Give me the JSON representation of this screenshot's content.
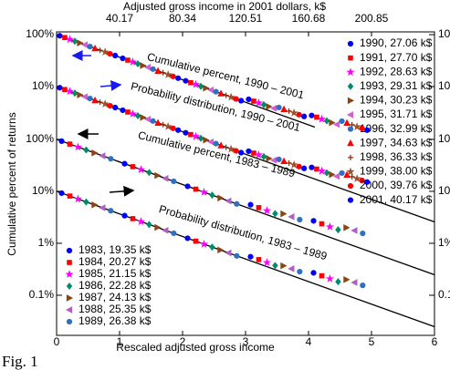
{
  "chart_data": {
    "type": "scatter",
    "log_y": true,
    "xlabel": "Rescaled adjusted gross income",
    "x2label": "Adjusted gross income in 2001 dollars, k$",
    "ylabel": "Cumulative percent of returns",
    "caption": "Fig. 1",
    "xlim": [
      0,
      6
    ],
    "xticks": [
      0,
      1,
      2,
      3,
      4,
      5,
      6
    ],
    "x2lim": [
      0,
      241.02
    ],
    "x2ticks": [
      40.17,
      80.34,
      120.51,
      160.68,
      200.85
    ],
    "ylim": [
      0.0169,
      11700
    ],
    "yticks": [
      {
        "value": 100,
        "label": "100%"
      },
      {
        "value": 10,
        "label": "10%"
      },
      {
        "value": 1,
        "label": "1%"
      },
      {
        "value": 0.1,
        "label": "0.1%"
      }
    ],
    "y2lim": [
      0.000162,
      113
    ],
    "y2ticks": [
      {
        "value": 100,
        "label": "100%"
      },
      {
        "value": 10,
        "label": "10%"
      }
    ],
    "y2color": "#1a1aee",
    "series": [
      {
        "name": "1990, 27.06 k$",
        "color": "#0000ff",
        "marker": "circle",
        "axis": "y2",
        "x": [
          0.05,
          1.05,
          2.05,
          3.05,
          4.05
        ],
        "values": [
          95.1,
          35.0,
          12.9,
          5.69,
          2.78
        ],
        "density": [
          9.51,
          3.5,
          1.29,
          0.569,
          0.278
        ]
      },
      {
        "name": "1991, 27.70 k$",
        "color": "#ff0000",
        "marker": "square",
        "axis": "y2",
        "x": [
          0.13,
          1.13,
          2.13,
          3.13,
          4.13
        ],
        "values": [
          87.8,
          32.3,
          11.9,
          5.24,
          2.58
        ],
        "density": [
          8.78,
          3.23,
          1.19,
          0.524,
          0.258
        ]
      },
      {
        "name": "1992, 28.63 k$",
        "color": "#ff00ff",
        "marker": "star",
        "axis": "y2",
        "x": [
          0.21,
          1.21,
          2.21,
          3.21,
          4.21
        ],
        "values": [
          81.1,
          29.8,
          11.0,
          4.85,
          2.37
        ],
        "density": [
          8.11,
          2.98,
          1.1,
          0.485,
          0.237
        ]
      },
      {
        "name": "1993, 29.31 k$",
        "color": "#008b6b",
        "marker": "diamond",
        "axis": "y2",
        "x": [
          0.29,
          1.29,
          2.29,
          3.29,
          4.29
        ],
        "values": [
          74.8,
          27.5,
          10.1,
          4.48,
          2.19
        ],
        "density": [
          7.48,
          2.75,
          1.01,
          0.448,
          0.219
        ]
      },
      {
        "name": "1994, 30.23 k$",
        "color": "#8b4513",
        "marker": "tri-right",
        "axis": "y2",
        "x": [
          0.37,
          1.37,
          2.37,
          3.37,
          4.37
        ],
        "values": [
          69.1,
          25.4,
          9.35,
          4.13,
          2.02
        ],
        "density": [
          6.91,
          2.54,
          0.935,
          0.413,
          0.202
        ]
      },
      {
        "name": "1995, 31.71 k$",
        "color": "#d060d0",
        "marker": "tri-left",
        "axis": "y2",
        "x": [
          0.45,
          1.45,
          2.45,
          3.45,
          4.45
        ],
        "values": [
          63.8,
          23.5,
          8.63,
          3.82,
          1.87
        ],
        "density": [
          6.38,
          2.35,
          0.863,
          0.382,
          0.187
        ]
      },
      {
        "name": "1996, 32.99 k$",
        "color": "#3070c0",
        "marker": "circle",
        "axis": "y2",
        "x": [
          0.53,
          1.53,
          2.53,
          3.53,
          4.53
        ],
        "values": [
          58.9,
          21.7,
          7.97,
          3.96,
          2.16
        ],
        "density": [
          5.89,
          2.17,
          0.797,
          0.396,
          0.216
        ]
      },
      {
        "name": "1997, 34.63 k$",
        "color": "#ff0000",
        "marker": "tri-up",
        "axis": "y2",
        "x": [
          0.61,
          1.61,
          2.61,
          3.61,
          4.61
        ],
        "values": [
          54.3,
          20.0,
          7.35,
          3.65,
          1.99
        ],
        "density": [
          5.43,
          2.0,
          0.735,
          0.365,
          0.199
        ]
      },
      {
        "name": "1998, 36.33 k$",
        "color": "#8b2500",
        "marker": "plus",
        "axis": "y2",
        "x": [
          0.69,
          1.69,
          2.69,
          3.69,
          4.69
        ],
        "values": [
          50.2,
          18.5,
          6.79,
          3.38,
          1.84
        ],
        "density": [
          5.02,
          1.85,
          0.679,
          0.338,
          0.184
        ]
      },
      {
        "name": "1999, 38.00 k$",
        "color": "#a0522d",
        "marker": "star",
        "axis": "y2",
        "x": [
          0.77,
          1.77,
          2.77,
          3.77,
          4.77
        ],
        "values": [
          46.3,
          17.0,
          6.26,
          3.12,
          1.69
        ],
        "density": [
          4.63,
          1.7,
          0.626,
          0.312,
          0.169
        ]
      },
      {
        "name": "2000, 39.76 k$",
        "color": "#ff0000",
        "marker": "circle",
        "axis": "y2",
        "x": [
          0.85,
          1.85,
          2.85,
          3.85,
          4.85
        ],
        "values": [
          42.7,
          15.7,
          5.78,
          2.88,
          1.56
        ],
        "density": [
          4.27,
          1.57,
          0.578,
          0.288,
          0.156
        ]
      },
      {
        "name": "2001, 40.17 k$",
        "color": "#0000ff",
        "marker": "circle",
        "axis": "y2",
        "x": [
          0.93,
          1.93,
          2.93,
          3.93,
          4.93
        ],
        "values": [
          39.5,
          14.5,
          5.34,
          2.66,
          1.45
        ],
        "density": [
          3.95,
          1.45,
          0.534,
          0.266,
          0.145
        ]
      },
      {
        "name": "1983, 19.35 k$",
        "color": "#0000ff",
        "marker": "circle",
        "x": [
          0.08,
          1.08,
          2.08,
          3.08,
          4.08
        ],
        "values": [
          92.3,
          34.0,
          12.5,
          5.52,
          2.7
        ],
        "density": [
          9.23,
          3.4,
          1.25,
          0.552,
          0.27
        ]
      },
      {
        "name": "1984, 20.27 k$",
        "color": "#ff0000",
        "marker": "square",
        "x": [
          0.21,
          1.21,
          2.21,
          3.21,
          4.21
        ],
        "values": [
          81.1,
          29.8,
          11.0,
          4.85,
          2.37
        ],
        "density": [
          8.11,
          2.98,
          1.1,
          0.485,
          0.237
        ]
      },
      {
        "name": "1985, 21.15 k$",
        "color": "#ff00ff",
        "marker": "star",
        "x": [
          0.34,
          1.34,
          2.34,
          3.34,
          4.34
        ],
        "values": [
          71.2,
          26.2,
          9.63,
          4.26,
          2.08
        ],
        "density": [
          7.12,
          2.62,
          0.963,
          0.426,
          0.208
        ]
      },
      {
        "name": "1986, 22.28 k$",
        "color": "#008b6b",
        "marker": "diamond",
        "x": [
          0.47,
          1.47,
          2.47,
          3.47,
          4.47
        ],
        "values": [
          62.5,
          23.0,
          8.46,
          3.73,
          1.82
        ],
        "density": [
          6.25,
          2.3,
          0.846,
          0.373,
          0.182
        ]
      },
      {
        "name": "1987, 24.13 k$",
        "color": "#8b4513",
        "marker": "tri-right",
        "x": [
          0.6,
          1.6,
          2.6,
          3.6,
          4.6
        ],
        "values": [
          54.9,
          20.2,
          7.43,
          3.69,
          2.0
        ],
        "density": [
          5.49,
          2.02,
          0.743,
          0.369,
          0.2
        ]
      },
      {
        "name": "1988, 25.35 k$",
        "color": "#b060c0",
        "marker": "tri-left",
        "x": [
          0.73,
          1.73,
          2.73,
          3.73,
          4.73
        ],
        "values": [
          48.2,
          17.7,
          6.52,
          3.24,
          1.76
        ],
        "density": [
          4.82,
          1.77,
          0.652,
          0.324,
          0.176
        ]
      },
      {
        "name": "1989, 26.38 k$",
        "color": "#3070c0",
        "marker": "circle",
        "x": [
          0.86,
          1.86,
          2.86,
          3.86,
          4.86
        ],
        "values": [
          42.3,
          15.6,
          5.72,
          2.85,
          1.55
        ],
        "density": [
          4.23,
          1.56,
          0.572,
          0.285,
          0.155
        ]
      }
    ],
    "fit_lines": [
      {
        "axis": "y2",
        "x": [
          0,
          4.1
        ],
        "values": [
          100,
          1.66
        ]
      },
      {
        "axis": "y2",
        "x": [
          0,
          6
        ],
        "values": [
          10,
          0.0248
        ]
      },
      {
        "x": [
          0,
          6
        ],
        "values": [
          100,
          0.248
        ]
      },
      {
        "x": [
          0,
          6
        ],
        "values": [
          10,
          0.0248
        ]
      }
    ],
    "annotations": [
      {
        "text": "Cumulative percent, 1990 – 2001",
        "color": "#1a1aee"
      },
      {
        "text": "Probability distribution, 1990 – 2001",
        "color": "#1a1aee"
      },
      {
        "text": "Cumulative percent, 1983 – 1989",
        "color": "#000000"
      },
      {
        "text": "Probability distribution, 1983 – 1989",
        "color": "#000000"
      }
    ]
  }
}
